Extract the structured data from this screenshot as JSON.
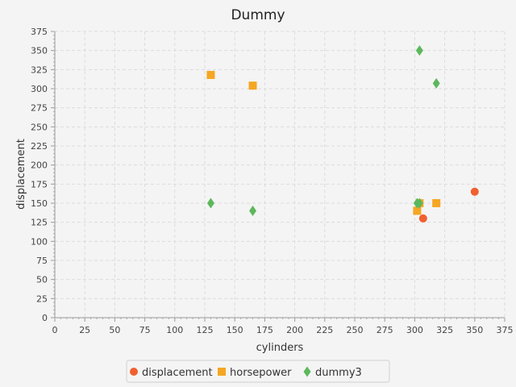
{
  "chart_data": {
    "type": "scatter",
    "title": "Dummy",
    "xlabel": "cylinders",
    "ylabel": "displacement",
    "xlim": [
      0,
      375
    ],
    "ylim": [
      0,
      375
    ],
    "xticks": [
      "0",
      "25",
      "50",
      "75",
      "100",
      "125",
      "150",
      "175",
      "200",
      "225",
      "250",
      "275",
      "300",
      "325",
      "350",
      "375"
    ],
    "yticks": [
      "0",
      "25",
      "50",
      "75",
      "100",
      "125",
      "150",
      "175",
      "200",
      "225",
      "250",
      "275",
      "300",
      "325",
      "350",
      "375"
    ],
    "grid": true,
    "legend_position": "bottom",
    "series": [
      {
        "name": "displacement",
        "marker": "circle",
        "color": "#f06030",
        "points": [
          [
            307,
            130
          ],
          [
            350,
            165
          ]
        ]
      },
      {
        "name": "horsepower",
        "marker": "square",
        "color": "#f5a623",
        "points": [
          [
            130,
            318
          ],
          [
            165,
            304
          ],
          [
            302,
            140
          ],
          [
            304,
            150
          ],
          [
            318,
            150
          ]
        ]
      },
      {
        "name": "dummy3",
        "marker": "diamond",
        "color": "#5cb85c",
        "points": [
          [
            130,
            150
          ],
          [
            165,
            140
          ],
          [
            304,
            350
          ],
          [
            318,
            307
          ],
          [
            302,
            150
          ],
          [
            304,
            150
          ]
        ]
      }
    ]
  }
}
